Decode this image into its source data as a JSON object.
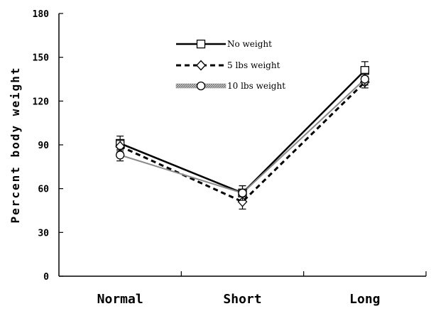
{
  "chart_data": {
    "type": "line",
    "title": "",
    "xlabel": "",
    "ylabel": "Percent body weight",
    "categories": [
      "Normal",
      "Short",
      "Long"
    ],
    "ylim": [
      0,
      180
    ],
    "yticks": [
      0,
      30,
      60,
      90,
      120,
      150,
      180
    ],
    "grid": false,
    "legend_position": "top-center",
    "series": [
      {
        "name": "No weight",
        "values": [
          91,
          57,
          141
        ],
        "errors": [
          5,
          5,
          6
        ],
        "marker": "square",
        "line_style": "solid",
        "color": "#000000"
      },
      {
        "name": "5 lbs weight",
        "values": [
          89,
          51,
          133
        ],
        "errors": [
          4,
          5,
          4
        ],
        "marker": "diamond",
        "line_style": "dashed",
        "color": "#000000"
      },
      {
        "name": "10 lbs weight",
        "values": [
          83,
          57,
          135
        ],
        "errors": [
          4,
          5,
          4
        ],
        "marker": "circle",
        "line_style": "hatched",
        "color": "#8a8a8a"
      }
    ]
  }
}
